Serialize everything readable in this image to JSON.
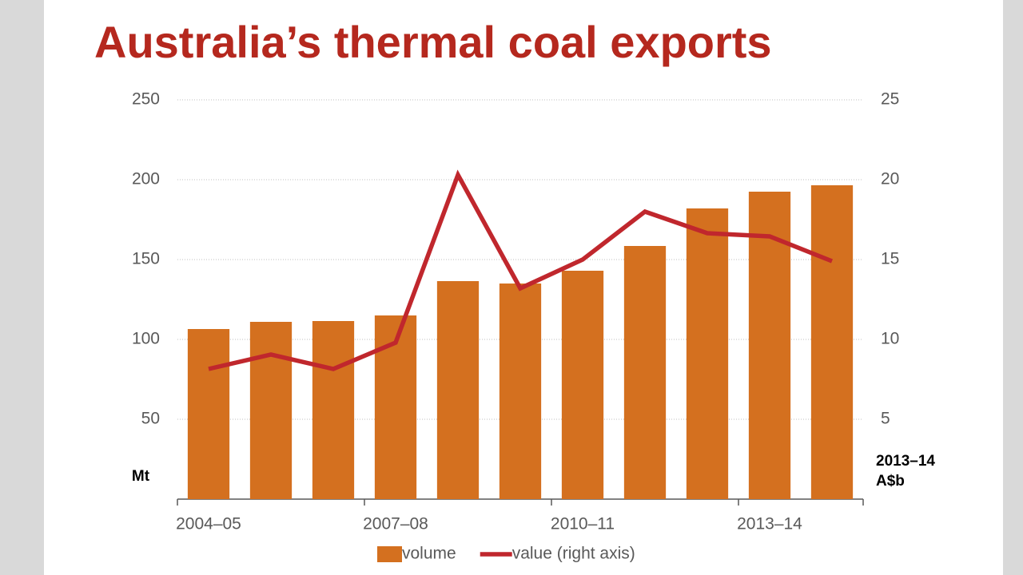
{
  "chart_data": {
    "type": "bar",
    "title": "Australia’s thermal coal exports",
    "categories": [
      "2004–05",
      null,
      null,
      "2007–08",
      null,
      null,
      "2010–11",
      null,
      null,
      "2013–14",
      null
    ],
    "series": [
      {
        "name": "volume",
        "type": "bar",
        "color": "#d4701f",
        "values": [
          106.5,
          111,
          111.5,
          115,
          136.5,
          135,
          143,
          158.5,
          182,
          192.5,
          196.5
        ]
      },
      {
        "name": "value (right axis)",
        "type": "line",
        "axis": "y2",
        "color": "#c0272d",
        "values": [
          8.15,
          9.05,
          8.15,
          9.8,
          20.3,
          13.2,
          15,
          18,
          16.65,
          16.45,
          14.9
        ]
      }
    ],
    "ylabel": "Mt",
    "y2label": [
      "2013–14",
      "A$b"
    ],
    "ylim": [
      0,
      250
    ],
    "yticks": [
      50,
      100,
      150,
      200,
      250
    ],
    "y2lim": [
      0,
      25
    ],
    "y2ticks": [
      5,
      10,
      15,
      20,
      25
    ],
    "grid": true,
    "legend": "bottom"
  }
}
